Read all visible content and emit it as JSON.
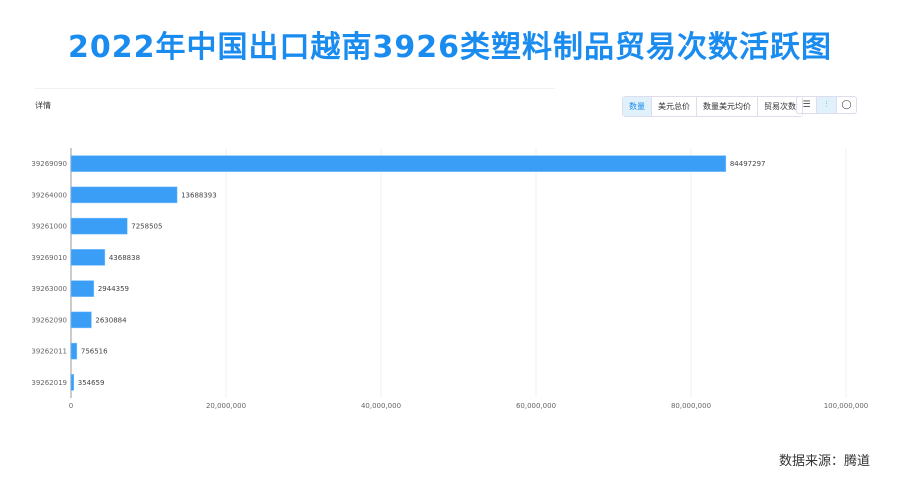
{
  "title": "2022年中国出口越南3926类塑料制品贸易次数活跃图",
  "detail_label": "详情",
  "metric_tabs": [
    {
      "label": "数量",
      "active": true
    },
    {
      "label": "美元总价",
      "active": false
    },
    {
      "label": "数量美元均价",
      "active": false
    },
    {
      "label": "贸易次数",
      "active": false
    }
  ],
  "view_icons": [
    {
      "name": "table-icon",
      "glyph": "☰",
      "active": false
    },
    {
      "name": "bar-chart-icon",
      "glyph": "⫶",
      "active": true
    },
    {
      "name": "pie-chart-icon",
      "glyph": "◯",
      "active": false
    }
  ],
  "source": "数据来源：腾道",
  "chart_data": {
    "type": "bar",
    "orientation": "horizontal",
    "categories": [
      "39269090",
      "39264000",
      "39261000",
      "39269010",
      "39263000",
      "39262090",
      "39262011",
      "39262019"
    ],
    "values": [
      84497297,
      13688393,
      7258505,
      4368838,
      2944359,
      2630884,
      756516,
      354659
    ],
    "xlim": [
      0,
      100000000
    ],
    "xticks": [
      "0",
      "20,000,000",
      "40,000,000",
      "60,000,000",
      "80,000,000",
      "100,000,000"
    ],
    "grid": true,
    "bar_color": "#3a9ef7"
  }
}
